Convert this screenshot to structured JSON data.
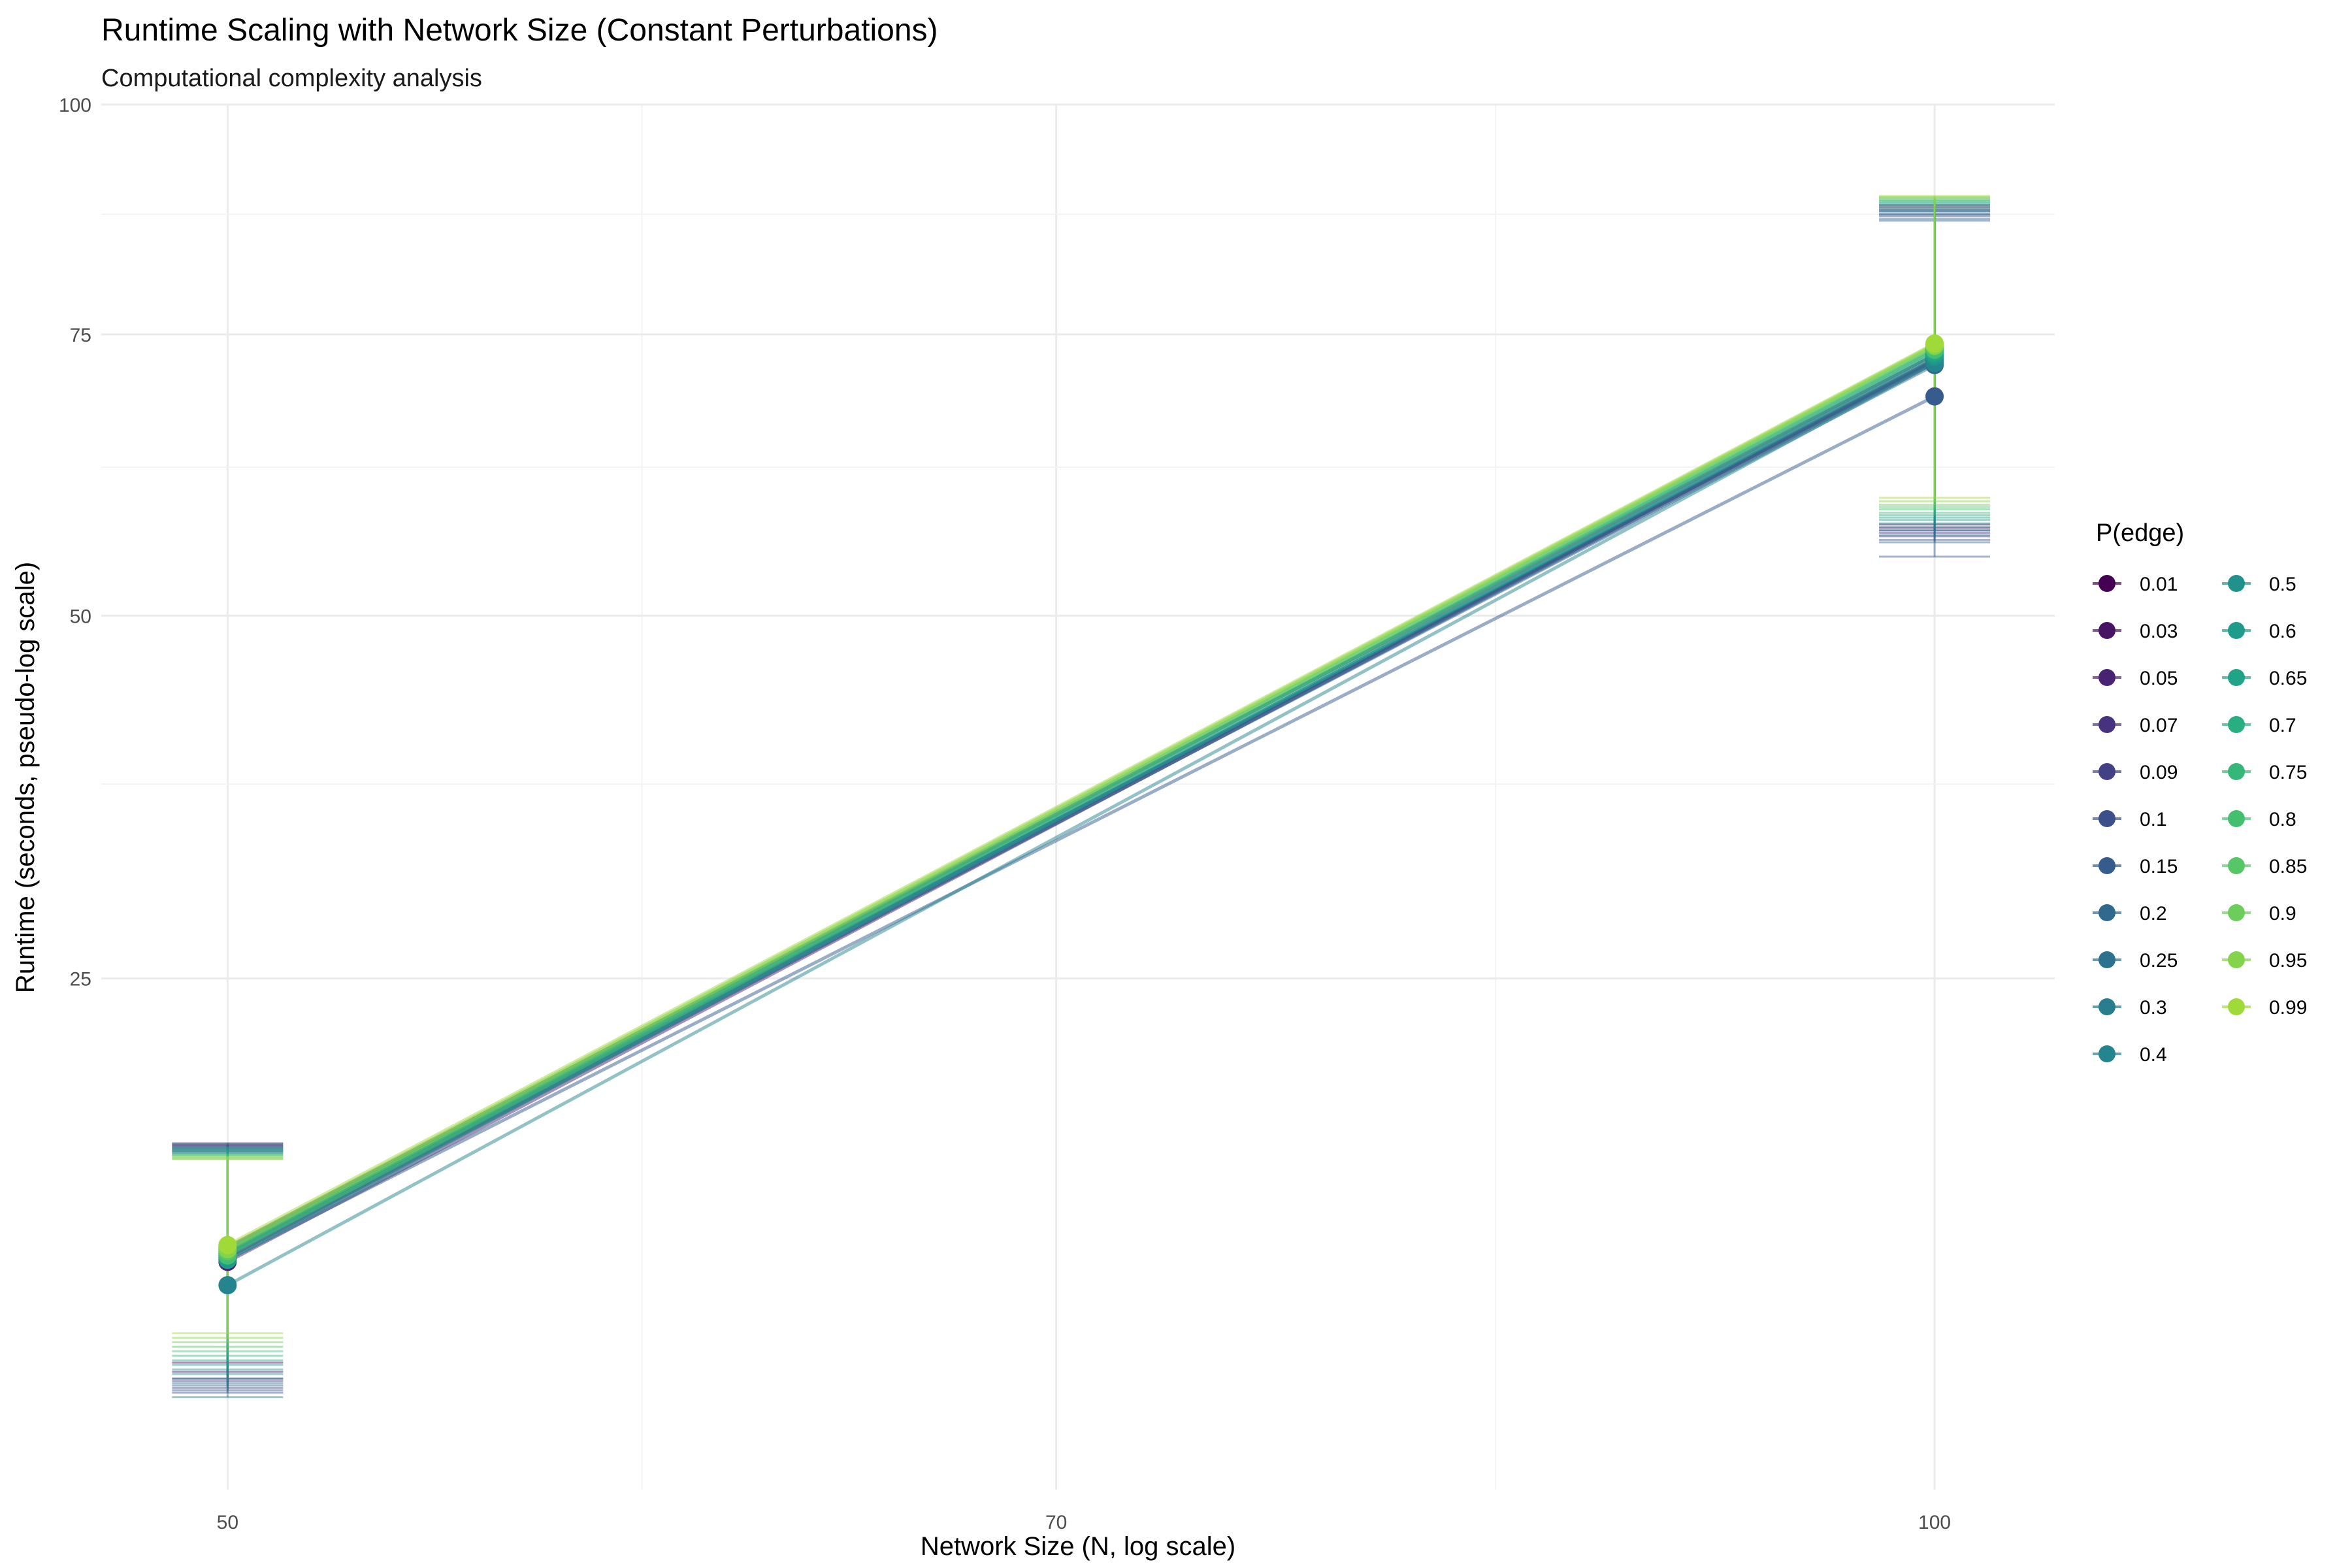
{
  "chart_data": {
    "type": "line",
    "title": "Runtime Scaling with Network Size (Constant Perturbations)",
    "subtitle": "Computational complexity analysis",
    "xlabel": "Network Size (N, log scale)",
    "ylabel": "Runtime (seconds, pseudo-log scale)",
    "x_scale": "log",
    "y_scale": "pseudo-log",
    "xlim": [
      47.5,
      105
    ],
    "ylim": [
      0,
      100
    ],
    "x_ticks": [
      50,
      70,
      100
    ],
    "x_tick_labels": [
      "50",
      "70",
      "100"
    ],
    "y_ticks": [
      25,
      50,
      75,
      100
    ],
    "y_tick_labels": [
      "25",
      "50",
      "75",
      "100"
    ],
    "grid": true,
    "legend_title": "P(edge)",
    "legend_position": "right",
    "x": [
      50,
      100
    ],
    "series": [
      {
        "name": "0.01",
        "color": "#440154",
        "values": [
          10.6,
          73.0
        ],
        "error_low": [
          5.3,
          57.5
        ],
        "error_high": [
          15.8,
          88.5
        ]
      },
      {
        "name": "0.03",
        "color": "#471365",
        "values": [
          10.1,
          72.6
        ],
        "error_low": [
          4.9,
          57.2
        ],
        "error_high": [
          15.7,
          88.3
        ]
      },
      {
        "name": "0.05",
        "color": "#482374",
        "values": [
          9.9,
          72.5
        ],
        "error_low": [
          4.6,
          57.0
        ],
        "error_high": [
          15.7,
          88.0
        ]
      },
      {
        "name": "0.07",
        "color": "#46327e",
        "values": [
          10.3,
          72.4
        ],
        "error_low": [
          4.5,
          56.8
        ],
        "error_high": [
          15.6,
          87.8
        ]
      },
      {
        "name": "0.09",
        "color": "#424186",
        "values": [
          10.1,
          72.2
        ],
        "error_low": [
          4.2,
          56.5
        ],
        "error_high": [
          15.5,
          87.5
        ]
      },
      {
        "name": "0.1",
        "color": "#3c4f8a",
        "values": [
          10.4,
          72.3
        ],
        "error_low": [
          4.0,
          56.2
        ],
        "error_high": [
          15.4,
          87.3
        ]
      },
      {
        "name": "0.15",
        "color": "#365c8d",
        "values": [
          10.0,
          69.0
        ],
        "error_low": [
          4.1,
          54.8
        ],
        "error_high": [
          15.3,
          86.8
        ]
      },
      {
        "name": "0.2",
        "color": "#30698e",
        "values": [
          10.2,
          72.0
        ],
        "error_low": [
          4.3,
          56.0
        ],
        "error_high": [
          15.4,
          87.0
        ]
      },
      {
        "name": "0.25",
        "color": "#2c728e",
        "values": [
          10.3,
          72.4
        ],
        "error_low": [
          4.4,
          56.6
        ],
        "error_high": [
          15.5,
          87.5
        ]
      },
      {
        "name": "0.3",
        "color": "#287d8e",
        "values": [
          10.5,
          72.6
        ],
        "error_low": [
          4.6,
          57.0
        ],
        "error_high": [
          15.6,
          87.8
        ]
      },
      {
        "name": "0.4",
        "color": "#25858e",
        "values": [
          8.8,
          72.2
        ],
        "error_low": [
          3.8,
          57.3
        ],
        "error_high": [
          15.8,
          88.0
        ]
      },
      {
        "name": "0.5",
        "color": "#21918c",
        "values": [
          10.2,
          72.8
        ],
        "error_low": [
          4.8,
          57.6
        ],
        "error_high": [
          15.6,
          88.2
        ]
      },
      {
        "name": "0.6",
        "color": "#1e9b8a",
        "values": [
          10.0,
          73.0
        ],
        "error_low": [
          5.0,
          57.9
        ],
        "error_high": [
          15.5,
          88.5
        ]
      },
      {
        "name": "0.65",
        "color": "#20a386",
        "values": [
          10.4,
          73.2
        ],
        "error_low": [
          5.2,
          58.1
        ],
        "error_high": [
          15.4,
          88.7
        ]
      },
      {
        "name": "0.7",
        "color": "#28ae80",
        "values": [
          10.3,
          73.4
        ],
        "error_low": [
          5.4,
          58.3
        ],
        "error_high": [
          15.3,
          88.8
        ]
      },
      {
        "name": "0.75",
        "color": "#35b779",
        "values": [
          10.5,
          73.6
        ],
        "error_low": [
          5.6,
          58.5
        ],
        "error_high": [
          15.2,
          89.0
        ]
      },
      {
        "name": "0.8",
        "color": "#44bf70",
        "values": [
          10.2,
          73.5
        ],
        "error_low": [
          5.8,
          58.8
        ],
        "error_high": [
          15.2,
          89.0
        ]
      },
      {
        "name": "0.85",
        "color": "#56c667",
        "values": [
          10.4,
          73.8
        ],
        "error_low": [
          6.0,
          59.0
        ],
        "error_high": [
          15.1,
          89.2
        ]
      },
      {
        "name": "0.9",
        "color": "#6ccd5a",
        "values": [
          10.6,
          74.0
        ],
        "error_low": [
          6.2,
          59.2
        ],
        "error_high": [
          15.0,
          89.3
        ]
      },
      {
        "name": "0.95",
        "color": "#84d44b",
        "values": [
          10.5,
          73.9
        ],
        "error_low": [
          6.4,
          59.5
        ],
        "error_high": [
          15.0,
          89.4
        ]
      },
      {
        "name": "0.99",
        "color": "#a0da39",
        "values": [
          10.7,
          74.1
        ],
        "error_low": [
          6.6,
          59.8
        ],
        "error_high": [
          15.1,
          89.5
        ]
      }
    ]
  }
}
